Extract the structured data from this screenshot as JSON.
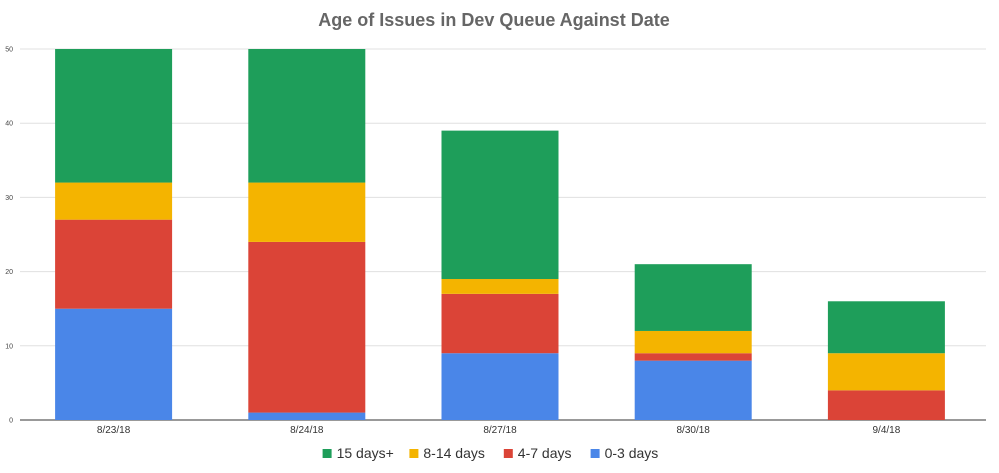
{
  "chart_data": {
    "type": "bar",
    "stacked": true,
    "title": "Age of Issues in Dev Queue Against Date",
    "xlabel": "",
    "ylabel": "",
    "categories": [
      "8/23/18",
      "8/24/18",
      "8/27/18",
      "8/30/18",
      "9/4/18"
    ],
    "ylim": [
      0,
      50
    ],
    "yticks": [
      0,
      10,
      20,
      30,
      40,
      50
    ],
    "grid": true,
    "legend": "bottom",
    "series": [
      {
        "name": "0-3 days",
        "color": "#4a86e8",
        "values": [
          15,
          1,
          9,
          8,
          0
        ]
      },
      {
        "name": "4-7 days",
        "color": "#db4437",
        "values": [
          12,
          23,
          8,
          1,
          4
        ]
      },
      {
        "name": "8-14 days",
        "color": "#f4b400",
        "values": [
          5,
          8,
          2,
          3,
          5
        ]
      },
      {
        "name": "15 days+",
        "color": "#1e9e5a",
        "values": [
          18,
          18,
          20,
          9,
          7
        ]
      }
    ],
    "legend_order": [
      "15 days+",
      "8-14 days",
      "4-7 days",
      "0-3 days"
    ]
  }
}
